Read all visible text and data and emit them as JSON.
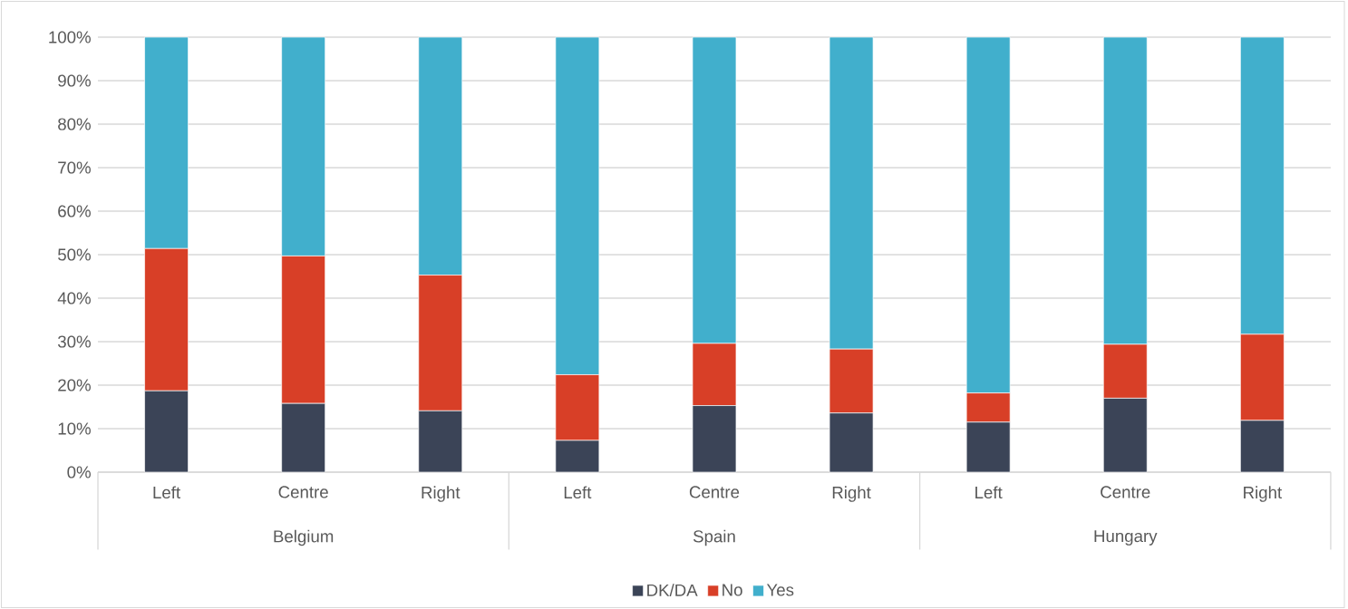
{
  "chart_data": {
    "type": "bar",
    "stacked": true,
    "categories": [
      "Left",
      "Centre",
      "Right",
      "Left",
      "Centre",
      "Right",
      "Left",
      "Centre",
      "Right"
    ],
    "annotations": [
      "Belgium",
      "Spain",
      "Hungary"
    ],
    "series": [
      {
        "name": "DK/DA",
        "color": "#3b4457",
        "values": [
          18.7,
          15.8,
          14.1,
          7.3,
          15.3,
          13.6,
          11.5,
          17.0,
          11.9
        ]
      },
      {
        "name": "No",
        "color": "#d83f27",
        "values": [
          32.7,
          33.9,
          31.2,
          15.1,
          14.3,
          14.7,
          6.7,
          12.4,
          19.8
        ]
      },
      {
        "name": "Yes",
        "color": "#41afcc",
        "values": [
          48.6,
          50.3,
          54.7,
          77.6,
          70.4,
          71.7,
          81.8,
          70.6,
          68.3
        ]
      }
    ],
    "ylim": [
      0,
      100
    ],
    "yticks": [
      {
        "value": 0,
        "label": "0%"
      },
      {
        "value": 10,
        "label": "10%"
      },
      {
        "value": 20,
        "label": "20%"
      },
      {
        "value": 30,
        "label": "30%"
      },
      {
        "value": 40,
        "label": "40%"
      },
      {
        "value": 50,
        "label": "50%"
      },
      {
        "value": 60,
        "label": "60%"
      },
      {
        "value": 70,
        "label": "70%"
      },
      {
        "value": 80,
        "label": "80%"
      },
      {
        "value": 90,
        "label": "90%"
      },
      {
        "value": 100,
        "label": "100%"
      }
    ],
    "grid": "y",
    "legend": "bottom"
  }
}
